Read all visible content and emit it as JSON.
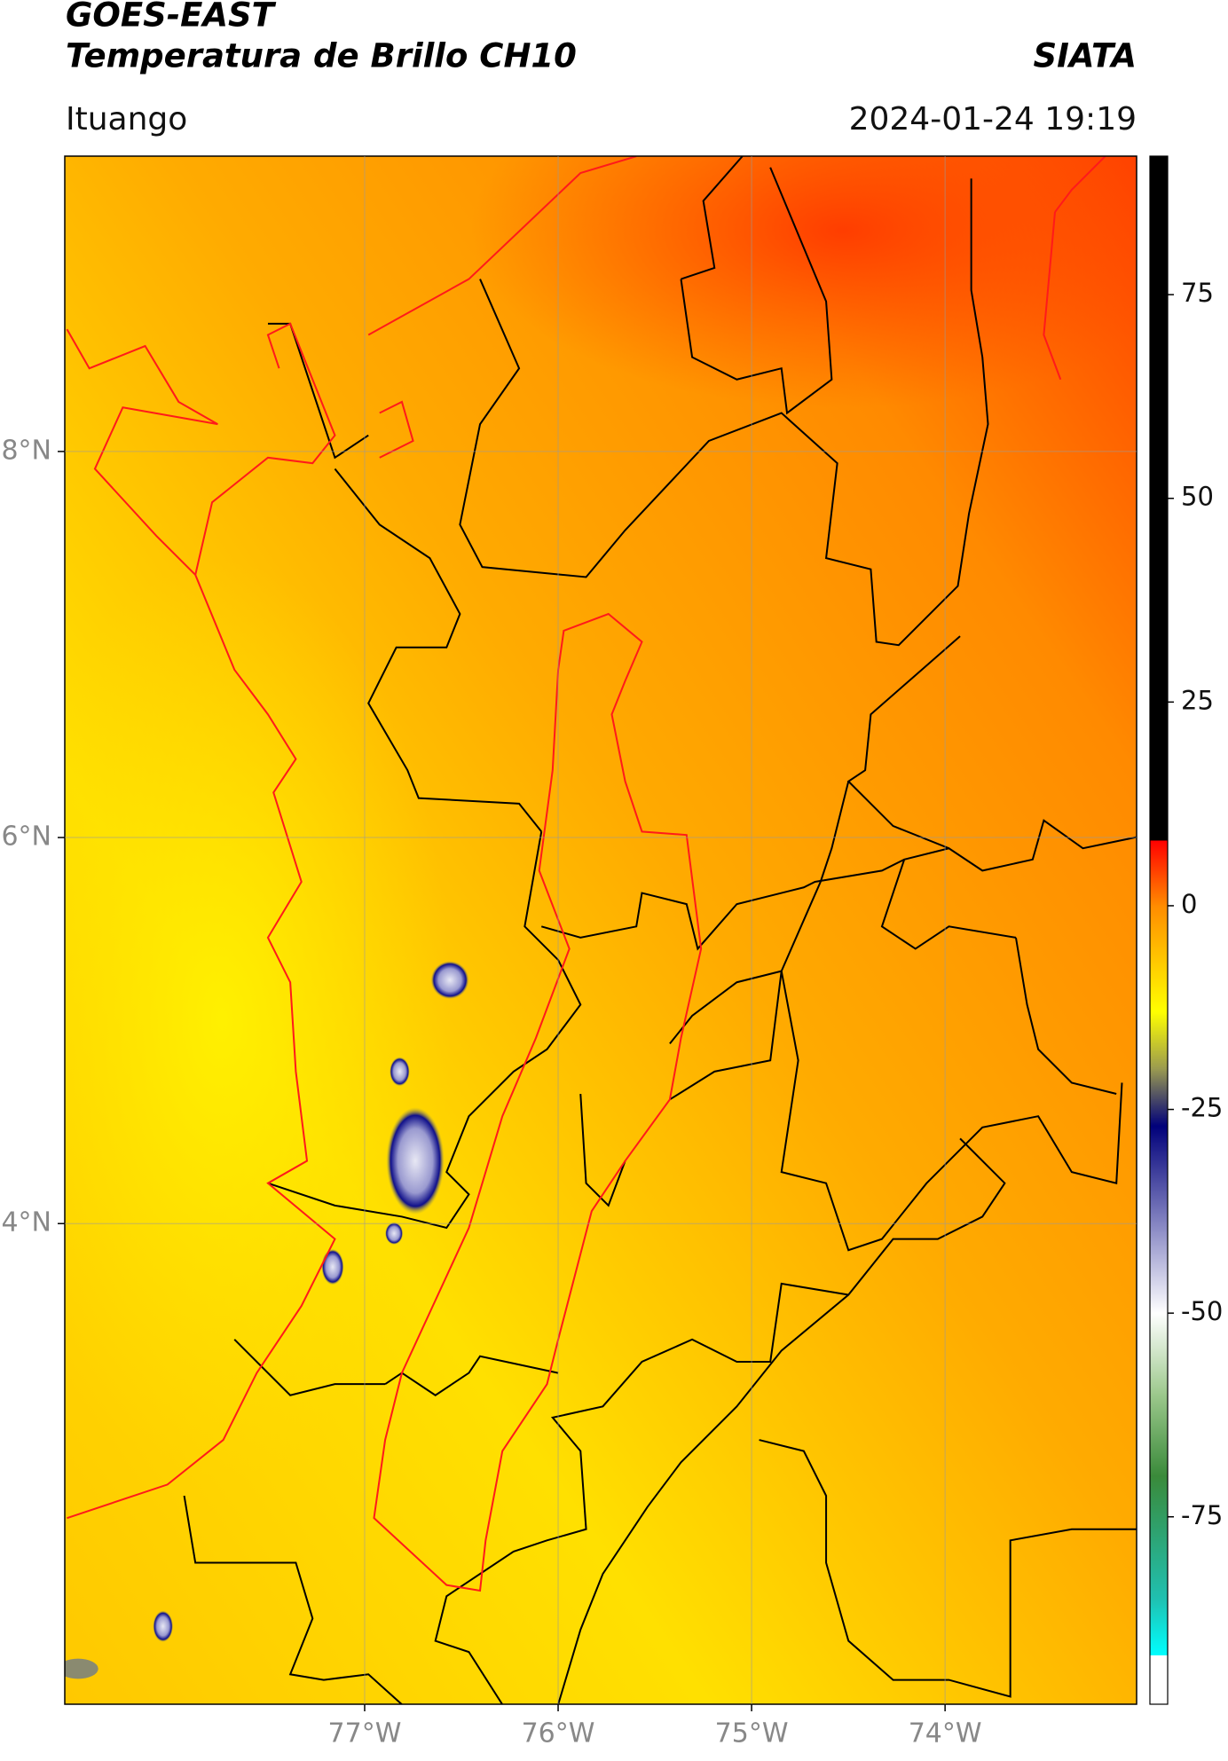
{
  "header": {
    "title_line1": "GOES-EAST",
    "title_line2": "Temperatura de Brillo CH10",
    "organization": "SIATA",
    "region": "Ituango",
    "datetime": "2024-01-24 19:19"
  },
  "map": {
    "lonlim": [
      -78.55,
      -73.01
    ],
    "latlim": [
      1.51,
      9.53
    ],
    "grid": true,
    "lon_ticks": [
      {
        "value": -77,
        "label": "77°W"
      },
      {
        "value": -76,
        "label": "76°W"
      },
      {
        "value": -75,
        "label": "75°W"
      },
      {
        "value": -74,
        "label": "74°W"
      }
    ],
    "lat_ticks": [
      {
        "value": 8,
        "label": "8°N"
      },
      {
        "value": 6,
        "label": "6°N"
      },
      {
        "value": 4,
        "label": "4°N"
      }
    ]
  },
  "colorbar": {
    "lim": [
      -98,
      92
    ],
    "ticks": [
      75,
      50,
      25,
      0,
      -25,
      -50,
      -75
    ],
    "stops": [
      {
        "value": 92,
        "color": "#000000"
      },
      {
        "value": 8,
        "color": "#000000"
      },
      {
        "value": 8,
        "color": "#ff0000"
      },
      {
        "value": 0,
        "color": "#ff8c00"
      },
      {
        "value": -13,
        "color": "#ffff00"
      },
      {
        "value": -20,
        "color": "#9a9a50"
      },
      {
        "value": -27,
        "color": "#00007a"
      },
      {
        "value": -40,
        "color": "#9090c8"
      },
      {
        "value": -50,
        "color": "#ffffff"
      },
      {
        "value": -60,
        "color": "#9cc88c"
      },
      {
        "value": -70,
        "color": "#3a8a3a"
      },
      {
        "value": -85,
        "color": "#20c0b0"
      },
      {
        "value": -92,
        "color": "#00ffff"
      },
      {
        "value": -92,
        "color": "#ffffff"
      },
      {
        "value": -98,
        "color": "#ffffff"
      }
    ]
  }
}
